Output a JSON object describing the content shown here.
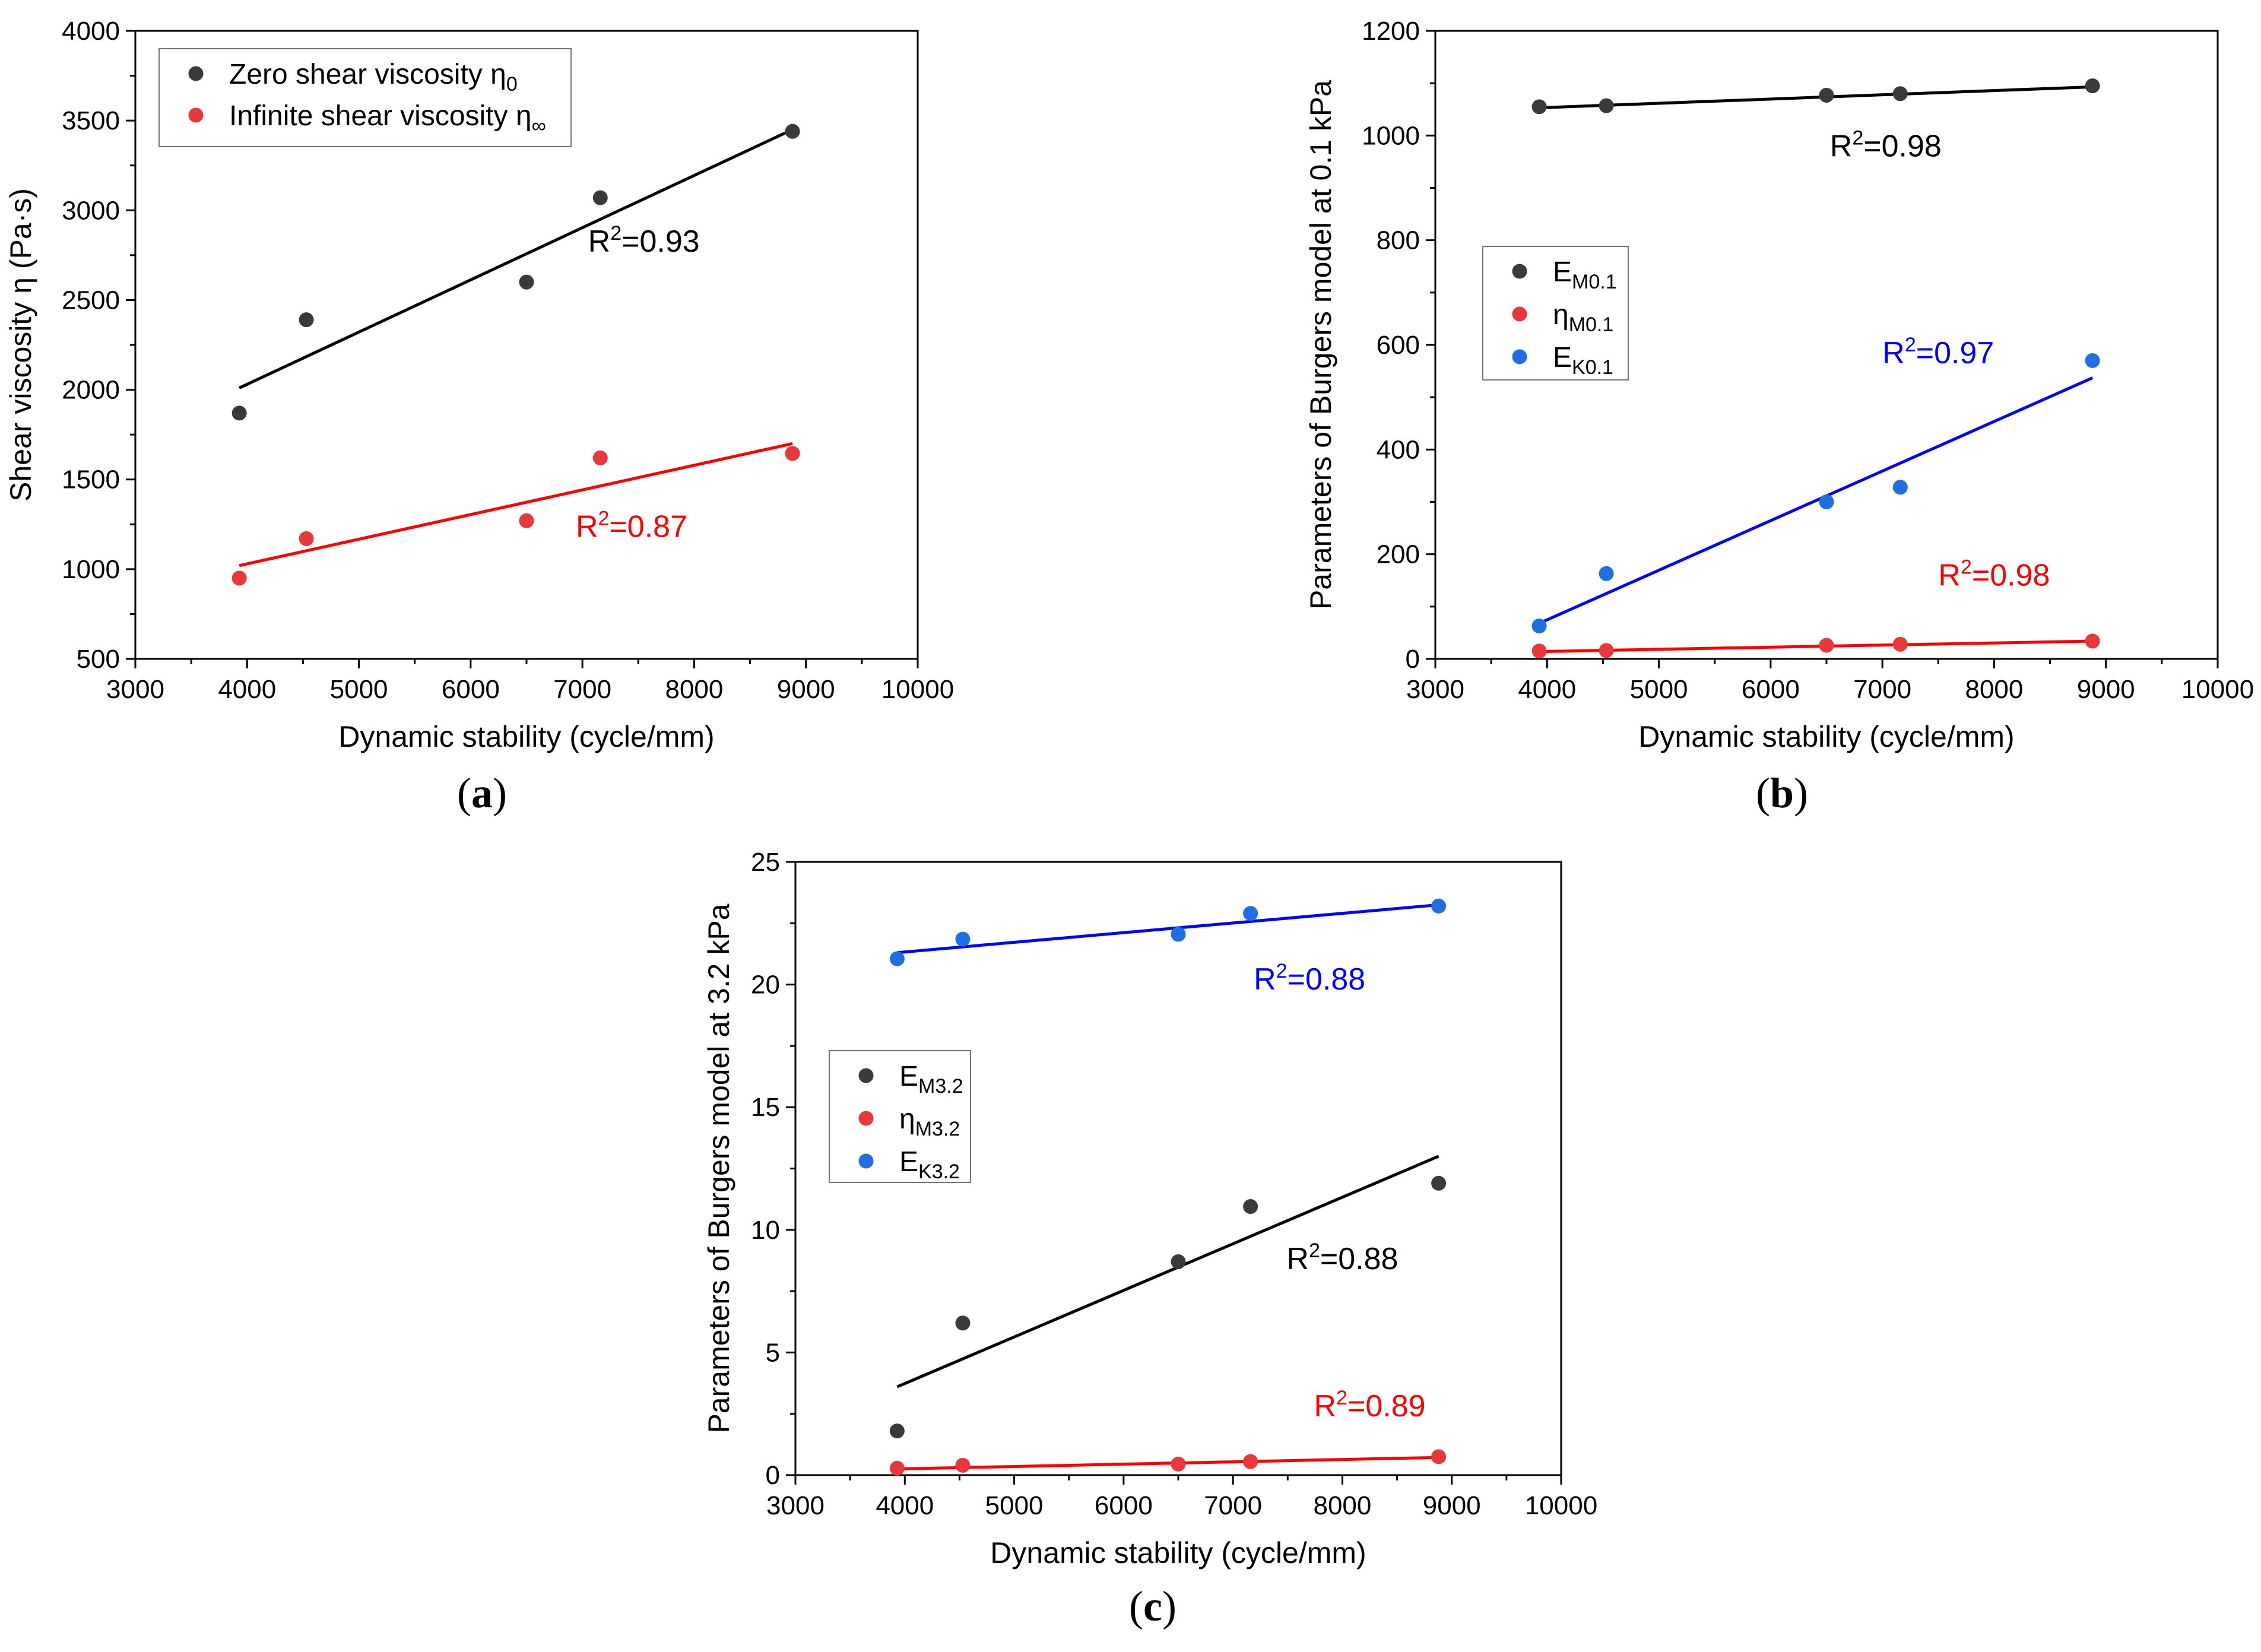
{
  "colors": {
    "black": "#3a3a3a",
    "red": "#e8383b",
    "blue": "#1f6fe0",
    "line_black": "#000000",
    "line_red": "#ff0000",
    "line_blue": "#0000ff"
  },
  "chart_data": [
    {
      "id": "a",
      "type": "scatter",
      "caption_letter": "a",
      "xlabel": "Dynamic stability (cycle/mm)",
      "ylabel": "Shear viscosity η (Pa·s)",
      "xlim": [
        3000,
        10000
      ],
      "ylim": [
        500,
        4000
      ],
      "xticks": [
        3000,
        4000,
        5000,
        6000,
        7000,
        8000,
        9000,
        10000
      ],
      "yticks": [
        500,
        1000,
        1500,
        2000,
        2500,
        3000,
        3500,
        4000
      ],
      "legend_position": "top-left",
      "series": [
        {
          "name": "Zero shear viscosity η",
          "sub": "0",
          "color": "black",
          "x": [
            3930,
            4530,
            6500,
            7160,
            8880
          ],
          "y": [
            1870,
            2390,
            2600,
            3070,
            3440
          ],
          "fit": [
            [
              3930,
              2010
            ],
            [
              8880,
              3450
            ]
          ],
          "r2_label": "R",
          "r2_sup": "2",
          "r2_value": "=0.93",
          "r2_at": [
            7550,
            2770
          ]
        },
        {
          "name": "Infinite shear viscosity η",
          "sub": "∞",
          "color": "red",
          "x": [
            3930,
            4530,
            6500,
            7160,
            8880
          ],
          "y": [
            950,
            1170,
            1270,
            1620,
            1645
          ],
          "fit": [
            [
              3930,
              1020
            ],
            [
              8880,
              1700
            ]
          ],
          "r2_label": "R",
          "r2_sup": "2",
          "r2_value": "=0.87",
          "r2_at": [
            7440,
            1180
          ]
        }
      ]
    },
    {
      "id": "b",
      "type": "scatter",
      "caption_letter": "b",
      "xlabel": "Dynamic stability (cycle/mm)",
      "ylabel": "Parameters of Burgers model at 0.1 kPa",
      "xlim": [
        3000,
        10000
      ],
      "ylim": [
        0,
        1200
      ],
      "xticks": [
        3000,
        4000,
        5000,
        6000,
        7000,
        8000,
        9000,
        10000
      ],
      "yticks": [
        0,
        200,
        400,
        600,
        800,
        1000,
        1200
      ],
      "legend_position": "middle-left",
      "series": [
        {
          "name": "E",
          "sub": "M0.1",
          "color": "black",
          "x": [
            3930,
            4530,
            6500,
            7160,
            8880
          ],
          "y": [
            1055,
            1057,
            1077,
            1080,
            1095
          ],
          "fit": [
            [
              3930,
              1053
            ],
            [
              8880,
              1093
            ]
          ],
          "r2_label": "R",
          "r2_sup": "2",
          "r2_value": "=0.98",
          "r2_at": [
            7030,
            960
          ]
        },
        {
          "name": "η",
          "sub": "M0.1",
          "color": "red",
          "x": [
            3930,
            4530,
            6500,
            7160,
            8880
          ],
          "y": [
            15,
            16,
            26,
            28,
            34
          ],
          "fit": [
            [
              3930,
              14
            ],
            [
              8880,
              34
            ]
          ],
          "r2_label": "R",
          "r2_sup": "2",
          "r2_value": "=0.98",
          "r2_at": [
            8000,
            140
          ]
        },
        {
          "name": "E",
          "sub": "K0.1",
          "color": "blue",
          "x": [
            3930,
            4530,
            6500,
            7160,
            8880
          ],
          "y": [
            63,
            163,
            300,
            328,
            570
          ],
          "fit": [
            [
              3930,
              68
            ],
            [
              8880,
              537
            ]
          ],
          "r2_label": "R",
          "r2_sup": "2",
          "r2_value": "=0.97",
          "r2_at": [
            7500,
            565
          ]
        }
      ]
    },
    {
      "id": "c",
      "type": "scatter",
      "caption_letter": "c",
      "xlabel": "Dynamic stability (cycle/mm)",
      "ylabel": "Parameters of Burgers model at 3.2 kPa",
      "xlim": [
        3000,
        10000
      ],
      "ylim": [
        0,
        25
      ],
      "xticks": [
        3000,
        4000,
        5000,
        6000,
        7000,
        8000,
        9000,
        10000
      ],
      "yticks": [
        0,
        5,
        10,
        15,
        20,
        25
      ],
      "legend_position": "middle-left",
      "series": [
        {
          "name": "E",
          "sub": "M3.2",
          "color": "black",
          "x": [
            3930,
            4530,
            6500,
            7160,
            8880
          ],
          "y": [
            1.8,
            6.2,
            8.7,
            10.95,
            11.9
          ],
          "fit": [
            [
              3930,
              3.6
            ],
            [
              8880,
              13.0
            ]
          ],
          "r2_label": "R",
          "r2_sup": "2",
          "r2_value": "=0.88",
          "r2_at": [
            8000,
            8.4
          ]
        },
        {
          "name": "η",
          "sub": "M3.2",
          "color": "red",
          "x": [
            3930,
            4530,
            6500,
            7160,
            8880
          ],
          "y": [
            0.28,
            0.4,
            0.45,
            0.55,
            0.75
          ],
          "fit": [
            [
              3930,
              0.25
            ],
            [
              8880,
              0.72
            ]
          ],
          "r2_label": "R",
          "r2_sup": "2",
          "r2_value": "=0.89",
          "r2_at": [
            8250,
            2.4
          ]
        },
        {
          "name": "E",
          "sub": "K3.2",
          "color": "blue",
          "x": [
            3930,
            4530,
            6500,
            7160,
            8880
          ],
          "y": [
            21.05,
            21.85,
            22.05,
            22.9,
            23.2
          ],
          "fit": [
            [
              3930,
              21.3
            ],
            [
              8880,
              23.25
            ]
          ],
          "r2_label": "R",
          "r2_sup": "2",
          "r2_value": "=0.88",
          "r2_at": [
            7700,
            19.8
          ]
        }
      ]
    }
  ]
}
